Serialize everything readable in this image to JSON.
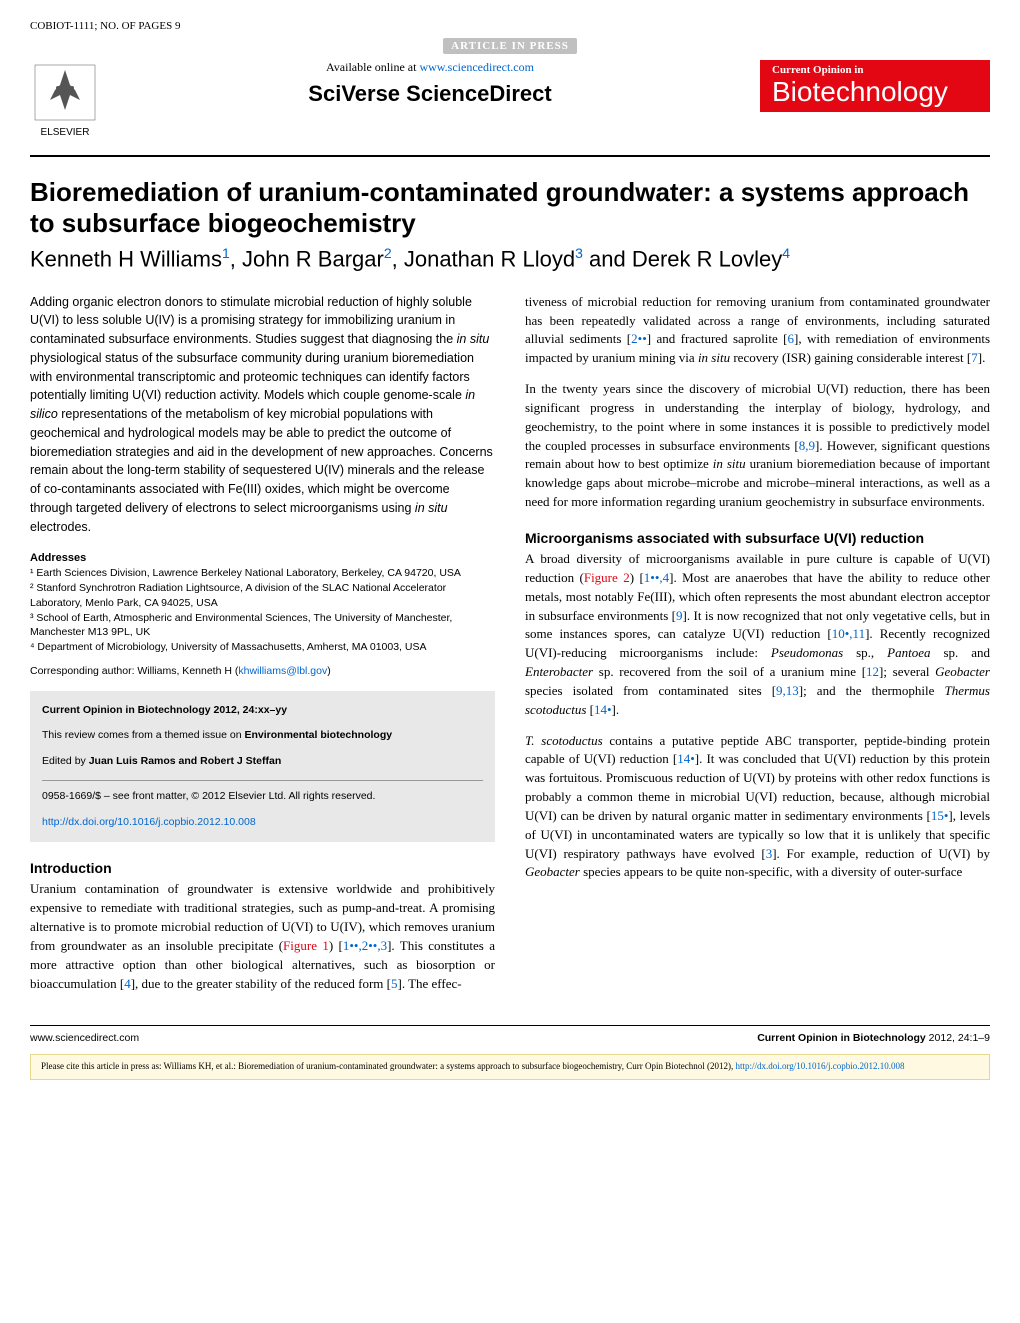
{
  "header": {
    "article_id": "COBIOT-1111; NO. OF PAGES 9",
    "article_in_press": "ARTICLE IN PRESS",
    "available_online": "Available online at ",
    "sd_url": "www.sciencedirect.com",
    "sciverse": "SciVerse ScienceDirect",
    "badge_top": "Current Opinion in",
    "badge_bottom": "Biotechnology",
    "elsevier_label": "ELSEVIER"
  },
  "article": {
    "title": "Bioremediation of uranium-contaminated groundwater: a systems approach to subsurface biogeochemistry",
    "authors_html": "Kenneth H Williams<sup>1</sup>, John R Bargar<sup>2</sup>, Jonathan R Lloyd<sup>3</sup> and Derek R Lovley<sup>4</sup>"
  },
  "abstract": "Adding organic electron donors to stimulate microbial reduction of highly soluble U(VI) to less soluble U(IV) is a promising strategy for immobilizing uranium in contaminated subsurface environments. Studies suggest that diagnosing the in situ physiological status of the subsurface community during uranium bioremediation with environmental transcriptomic and proteomic techniques can identify factors potentially limiting U(VI) reduction activity. Models which couple genome-scale in silico representations of the metabolism of key microbial populations with geochemical and hydrological models may be able to predict the outcome of bioremediation strategies and aid in the development of new approaches. Concerns remain about the long-term stability of sequestered U(IV) minerals and the release of co-contaminants associated with Fe(III) oxides, which might be overcome through targeted delivery of electrons to select microorganisms using in situ electrodes.",
  "addresses": {
    "heading": "Addresses",
    "list": [
      "¹ Earth Sciences Division, Lawrence Berkeley National Laboratory, Berkeley, CA 94720, USA",
      "² Stanford Synchrotron Radiation Lightsource, A division of the SLAC National Accelerator Laboratory, Menlo Park, CA 94025, USA",
      "³ School of Earth, Atmospheric and Environmental Sciences, The University of Manchester, Manchester M13 9PL, UK",
      "⁴ Department of Microbiology, University of Massachusetts, Amherst, MA 01003, USA"
    ],
    "corresponding": "Corresponding author: Williams, Kenneth H (",
    "email": "khwilliams@lbl.gov",
    "corresponding_close": ")"
  },
  "infobox": {
    "citation": "Current Opinion in Biotechnology 2012, 24:xx–yy",
    "review_from": "This review comes from a themed issue on ",
    "review_issue": "Environmental biotechnology",
    "edited_by": "Edited by ",
    "editors": "Juan Luis Ramos and Robert J Steffan",
    "copyright": "0958-1669/$ – see front matter, © 2012 Elsevier Ltd. All rights reserved.",
    "doi": "http://dx.doi.org/10.1016/j.copbio.2012.10.008"
  },
  "sections": {
    "intro_heading": "Introduction",
    "intro_p1": "Uranium contamination of groundwater is extensive worldwide and prohibitively expensive to remediate with traditional strategies, such as pump-and-treat. A promising alternative is to promote microbial reduction of U(VI) to U(IV), which removes uranium from groundwater as an insoluble precipitate (Figure 1) [1••,2••,3]. This constitutes a more attractive option than other biological alternatives, such as biosorption or bioaccumulation [4], due to the greater stability of the reduced form [5]. The effec-",
    "col2_p1": "tiveness of microbial reduction for removing uranium from contaminated groundwater has been repeatedly validated across a range of environments, including saturated alluvial sediments [2••] and fractured saprolite [6], with remediation of environments impacted by uranium mining via in situ recovery (ISR) gaining considerable interest [7].",
    "col2_p2": "In the twenty years since the discovery of microbial U(VI) reduction, there has been significant progress in understanding the interplay of biology, hydrology, and geochemistry, to the point where in some instances it is possible to predictively model the coupled processes in subsurface environments [8,9]. However, significant questions remain about how to best optimize in situ uranium bioremediation because of important knowledge gaps about microbe–microbe and microbe–mineral interactions, as well as a need for more information regarding uranium geochemistry in subsurface environments.",
    "micro_heading": "Microorganisms associated with subsurface U(VI) reduction",
    "micro_p1": "A broad diversity of microorganisms available in pure culture is capable of U(VI) reduction (Figure 2) [1••,4]. Most are anaerobes that have the ability to reduce other metals, most notably Fe(III), which often represents the most abundant electron acceptor in subsurface environments [9]. It is now recognized that not only vegetative cells, but in some instances spores, can catalyze U(VI) reduction [10•,11]. Recently recognized U(VI)-reducing microorganisms include: Pseudomonas sp., Pantoea sp. and Enterobacter sp. recovered from the soil of a uranium mine [12]; several Geobacter species isolated from contaminated sites [9,13]; and the thermophile Thermus scotoductus [14•].",
    "micro_p2": "T. scotoductus contains a putative peptide ABC transporter, peptide-binding protein capable of U(VI) reduction [14•]. It was concluded that U(VI) reduction by this protein was fortuitous. Promiscuous reduction of U(VI) by proteins with other redox functions is probably a common theme in microbial U(VI) reduction, because, although microbial U(VI) can be driven by natural organic matter in sedimentary environments [15•], levels of U(VI) in uncontaminated waters are typically so low that it is unlikely that specific U(VI) respiratory pathways have evolved [3]. For example, reduction of U(VI) by Geobacter species appears to be quite non-specific, with a diversity of outer-surface"
  },
  "footer": {
    "left": "www.sciencedirect.com",
    "right_prefix": "Current Opinion in Biotechnology",
    "right_suffix": " 2012, 24:1–9"
  },
  "citation_footer": {
    "text": "Please cite this article in press as: Williams KH, et al.: Bioremediation of uranium-contaminated groundwater: a systems approach to subsurface biogeochemistry, Curr Opin Biotechnol (2012),",
    "url": "http://dx.doi.org/10.1016/j.copbio.2012.10.008"
  },
  "colors": {
    "link_blue": "#0066cc",
    "journal_red": "#e30613",
    "infobox_bg": "#e8e8e8",
    "citation_bg": "#fef9e0",
    "citation_border": "#e6d78a"
  }
}
